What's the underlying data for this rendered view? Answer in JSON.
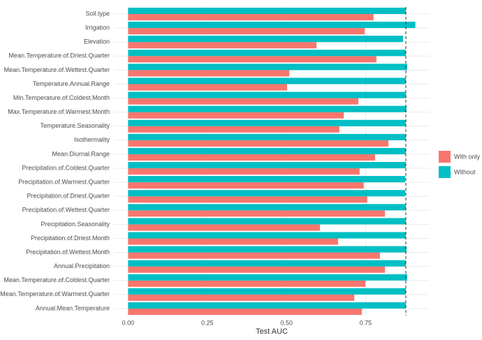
{
  "chart_data": {
    "type": "barh",
    "x_label": "Test AUC",
    "categories": [
      "Soil.type",
      "Irrigation",
      "Elevation",
      "Mean.Temperature.of.Driest.Quarter",
      "Mean.Temperature.of.Wettest.Quarter",
      "Temperature.Annual.Range",
      "Min.Temperature.of.Coldest.Month",
      "Max.Temperature.of.Warmest.Month",
      "Temperature.Seasonality",
      "Isothermality",
      "Mean.Diurnal.Range",
      "Precipitation.of.Coldest.Quarter",
      "Precipitation.of.Warmest.Quarter",
      "Precipitation.of.Driest.Quarter",
      "Precipitation.of.Wettest.Quarter",
      "Precipitation.Seasonality",
      "Precipitation.of.Driest.Month",
      "Precipitation.of.Wettest.Month",
      "Annual.Precipitation",
      "Mean.Temperature.of.Coldest.Quarter",
      "Mean.Temperature.of.Warmest.Quarter",
      "Annual.Mean.Temperature"
    ],
    "series": [
      {
        "name": "With only",
        "color": "#f8766d",
        "values": [
          0.775,
          0.747,
          0.595,
          0.784,
          0.509,
          0.502,
          0.727,
          0.681,
          0.667,
          0.822,
          0.78,
          0.731,
          0.744,
          0.755,
          0.811,
          0.606,
          0.663,
          0.795,
          0.811,
          0.749,
          0.714,
          0.738
        ]
      },
      {
        "name": "Without",
        "color": "#00bfc4",
        "values": [
          0.877,
          0.907,
          0.868,
          0.877,
          0.881,
          0.877,
          0.877,
          0.879,
          0.877,
          0.877,
          0.877,
          0.877,
          0.875,
          0.875,
          0.877,
          0.877,
          0.877,
          0.879,
          0.877,
          0.881,
          0.877,
          0.877
        ]
      }
    ],
    "xlim": [
      -0.045,
      0.952
    ],
    "xticks": [
      {
        "value": 0,
        "label": "0.00"
      },
      0.25,
      {
        "value": 0.5,
        "label": "0.50"
      },
      0.75
    ],
    "reference_line": 0.877,
    "grid": true,
    "legend": "right"
  }
}
